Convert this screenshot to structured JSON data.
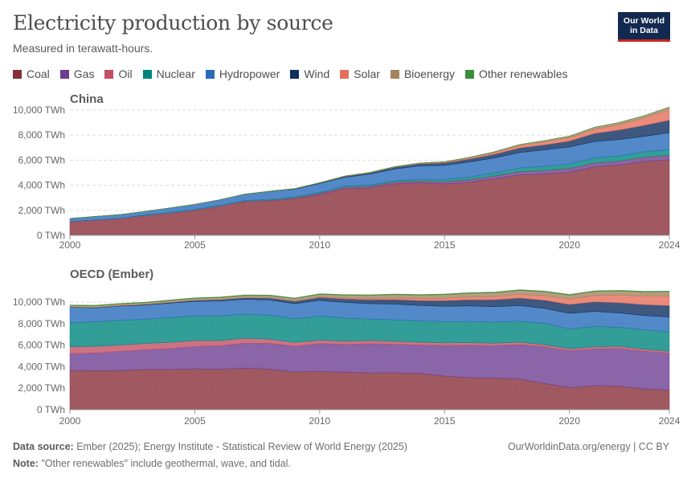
{
  "header": {
    "title": "Electricity production by source",
    "subtitle": "Measured in terawatt-hours.",
    "logo_line1": "Our World",
    "logo_line2": "in Data"
  },
  "colors": {
    "Coal": "#883039",
    "Gas": "#6d3e91",
    "Oil": "#c15065",
    "Nuclear": "#00847e",
    "Hydropower": "#286bbb",
    "Wind": "#0f2e5f",
    "Solar": "#e56e5a",
    "Bioenergy": "#a2845e",
    "Other renewables": "#3b8e3b"
  },
  "footer": {
    "source_label": "Data source:",
    "source_text": "Ember (2025); Energy Institute - Statistical Review of World Energy (2025)",
    "note_label": "Note:",
    "note_text": "\"Other renewables\" include geothermal, wave, and tidal.",
    "credit": "OurWorldinData.org/energy | CC BY"
  },
  "chart_data": [
    {
      "type": "area",
      "stacked": true,
      "title": "China",
      "unit": "TWh",
      "legend": [
        "Coal",
        "Gas",
        "Oil",
        "Nuclear",
        "Hydropower",
        "Wind",
        "Solar",
        "Bioenergy",
        "Other renewables"
      ],
      "x": [
        2000,
        2001,
        2002,
        2003,
        2004,
        2005,
        2006,
        2007,
        2008,
        2009,
        2010,
        2011,
        2012,
        2013,
        2014,
        2015,
        2016,
        2017,
        2018,
        2019,
        2020,
        2021,
        2022,
        2023,
        2024
      ],
      "xticks": [
        2000,
        2005,
        2010,
        2015,
        2020,
        2024
      ],
      "yticks": [
        0,
        2000,
        4000,
        6000,
        8000,
        10000
      ],
      "ytick_labels": [
        "0 TWh",
        "2,000 TWh",
        "4,000 TWh",
        "6,000 TWh",
        "8,000 TWh",
        "10,000 TWh"
      ],
      "ylim": [
        0,
        10000
      ],
      "series": [
        {
          "name": "Coal",
          "values": [
            1060,
            1160,
            1290,
            1530,
            1720,
            1960,
            2280,
            2660,
            2730,
            2920,
            3250,
            3720,
            3780,
            4110,
            4190,
            4110,
            4240,
            4500,
            4830,
            4900,
            5050,
            5460,
            5620,
            5900,
            6030
          ]
        },
        {
          "name": "Gas",
          "values": [
            5,
            6,
            7,
            8,
            10,
            12,
            15,
            20,
            25,
            35,
            55,
            80,
            95,
            110,
            120,
            145,
            170,
            200,
            215,
            235,
            250,
            275,
            270,
            300,
            330
          ]
        },
        {
          "name": "Oil",
          "values": [
            45,
            46,
            47,
            48,
            50,
            52,
            50,
            49,
            47,
            46,
            45,
            44,
            43,
            42,
            41,
            40,
            39,
            38,
            38,
            37,
            36,
            35,
            34,
            34,
            33
          ]
        },
        {
          "name": "Nuclear",
          "values": [
            17,
            18,
            25,
            43,
            50,
            53,
            55,
            62,
            68,
            70,
            74,
            86,
            97,
            112,
            132,
            171,
            213,
            248,
            295,
            348,
            366,
            408,
            418,
            435,
            450
          ]
        },
        {
          "name": "Hydropower",
          "values": [
            222,
            277,
            288,
            283,
            354,
            397,
            436,
            485,
            637,
            616,
            711,
            699,
            872,
            920,
            1064,
            1126,
            1193,
            1194,
            1232,
            1302,
            1355,
            1300,
            1303,
            1226,
            1354
          ]
        },
        {
          "name": "Wind",
          "values": [
            1,
            1,
            1,
            1,
            1,
            2,
            4,
            6,
            13,
            28,
            45,
            70,
            96,
            141,
            156,
            186,
            237,
            295,
            366,
            405,
            467,
            656,
            763,
            886,
            997
          ]
        },
        {
          "name": "Solar",
          "values": [
            0,
            0,
            0,
            0,
            0,
            0,
            0,
            0,
            0,
            0,
            1,
            3,
            4,
            8,
            24,
            45,
            75,
            118,
            178,
            225,
            261,
            327,
            427,
            584,
            834
          ]
        },
        {
          "name": "Bioenergy",
          "values": [
            2,
            2,
            3,
            4,
            5,
            6,
            8,
            10,
            15,
            20,
            25,
            32,
            36,
            42,
            46,
            53,
            65,
            80,
            93,
            112,
            136,
            170,
            180,
            190,
            208
          ]
        },
        {
          "name": "Other renewables",
          "values": [
            0,
            0,
            0,
            0,
            0,
            0,
            0,
            0,
            0,
            0,
            0,
            0,
            0,
            0,
            0,
            0,
            0,
            0,
            0,
            0,
            0,
            0,
            0,
            0,
            0
          ]
        }
      ]
    },
    {
      "type": "area",
      "stacked": true,
      "title": "OECD (Ember)",
      "unit": "TWh",
      "legend": [
        "Coal",
        "Gas",
        "Oil",
        "Nuclear",
        "Hydropower",
        "Wind",
        "Solar",
        "Bioenergy",
        "Other renewables"
      ],
      "x": [
        2000,
        2001,
        2002,
        2003,
        2004,
        2005,
        2006,
        2007,
        2008,
        2009,
        2010,
        2011,
        2012,
        2013,
        2014,
        2015,
        2016,
        2017,
        2018,
        2019,
        2020,
        2021,
        2022,
        2023,
        2024
      ],
      "xticks": [
        2000,
        2005,
        2010,
        2015,
        2020,
        2024
      ],
      "yticks": [
        0,
        2000,
        4000,
        6000,
        8000,
        10000
      ],
      "ytick_labels": [
        "0 TWh",
        "2,000 TWh",
        "4,000 TWh",
        "6,000 TWh",
        "8,000 TWh",
        "10,000 TWh"
      ],
      "ylim": [
        0,
        11500
      ],
      "series": [
        {
          "name": "Coal",
          "values": [
            3650,
            3620,
            3640,
            3740,
            3740,
            3800,
            3760,
            3850,
            3780,
            3500,
            3580,
            3480,
            3420,
            3430,
            3380,
            3130,
            2980,
            2950,
            2850,
            2450,
            2050,
            2230,
            2200,
            1920,
            1820
          ]
        },
        {
          "name": "Gas",
          "values": [
            1560,
            1650,
            1780,
            1820,
            1950,
            2080,
            2180,
            2330,
            2380,
            2400,
            2570,
            2580,
            2710,
            2650,
            2630,
            2830,
            3000,
            3000,
            3200,
            3400,
            3420,
            3420,
            3500,
            3520,
            3440
          ]
        },
        {
          "name": "Oil",
          "values": [
            640,
            620,
            600,
            590,
            570,
            540,
            480,
            460,
            400,
            350,
            320,
            310,
            300,
            280,
            260,
            250,
            240,
            230,
            220,
            200,
            190,
            190,
            200,
            180,
            170
          ]
        },
        {
          "name": "Nuclear",
          "values": [
            2250,
            2290,
            2300,
            2250,
            2310,
            2300,
            2310,
            2250,
            2230,
            2200,
            2240,
            2140,
            2000,
            1990,
            1990,
            1980,
            1990,
            1970,
            1970,
            1970,
            1850,
            1900,
            1760,
            1800,
            1820
          ]
        },
        {
          "name": "Hydropower",
          "values": [
            1410,
            1290,
            1310,
            1320,
            1330,
            1350,
            1380,
            1370,
            1410,
            1400,
            1450,
            1470,
            1430,
            1470,
            1430,
            1420,
            1440,
            1420,
            1440,
            1400,
            1440,
            1400,
            1330,
            1330,
            1360
          ]
        },
        {
          "name": "Wind",
          "values": [
            30,
            35,
            45,
            60,
            75,
            95,
            120,
            145,
            180,
            220,
            270,
            320,
            360,
            420,
            460,
            530,
            570,
            650,
            700,
            760,
            830,
            880,
            960,
            1020,
            1070
          ]
        },
        {
          "name": "Solar",
          "values": [
            1,
            1,
            1,
            2,
            2,
            3,
            5,
            8,
            15,
            25,
            40,
            75,
            110,
            145,
            180,
            220,
            260,
            300,
            350,
            420,
            500,
            590,
            700,
            800,
            900
          ]
        },
        {
          "name": "Bioenergy",
          "values": [
            150,
            150,
            155,
            160,
            170,
            180,
            190,
            200,
            210,
            230,
            255,
            270,
            290,
            305,
            320,
            330,
            340,
            350,
            360,
            370,
            370,
            380,
            380,
            370,
            380
          ]
        },
        {
          "name": "Other renewables",
          "values": [
            50,
            50,
            50,
            50,
            52,
            52,
            53,
            55,
            55,
            55,
            57,
            58,
            58,
            60,
            60,
            62,
            62,
            62,
            63,
            63,
            64,
            64,
            64,
            64,
            65
          ]
        }
      ]
    }
  ]
}
